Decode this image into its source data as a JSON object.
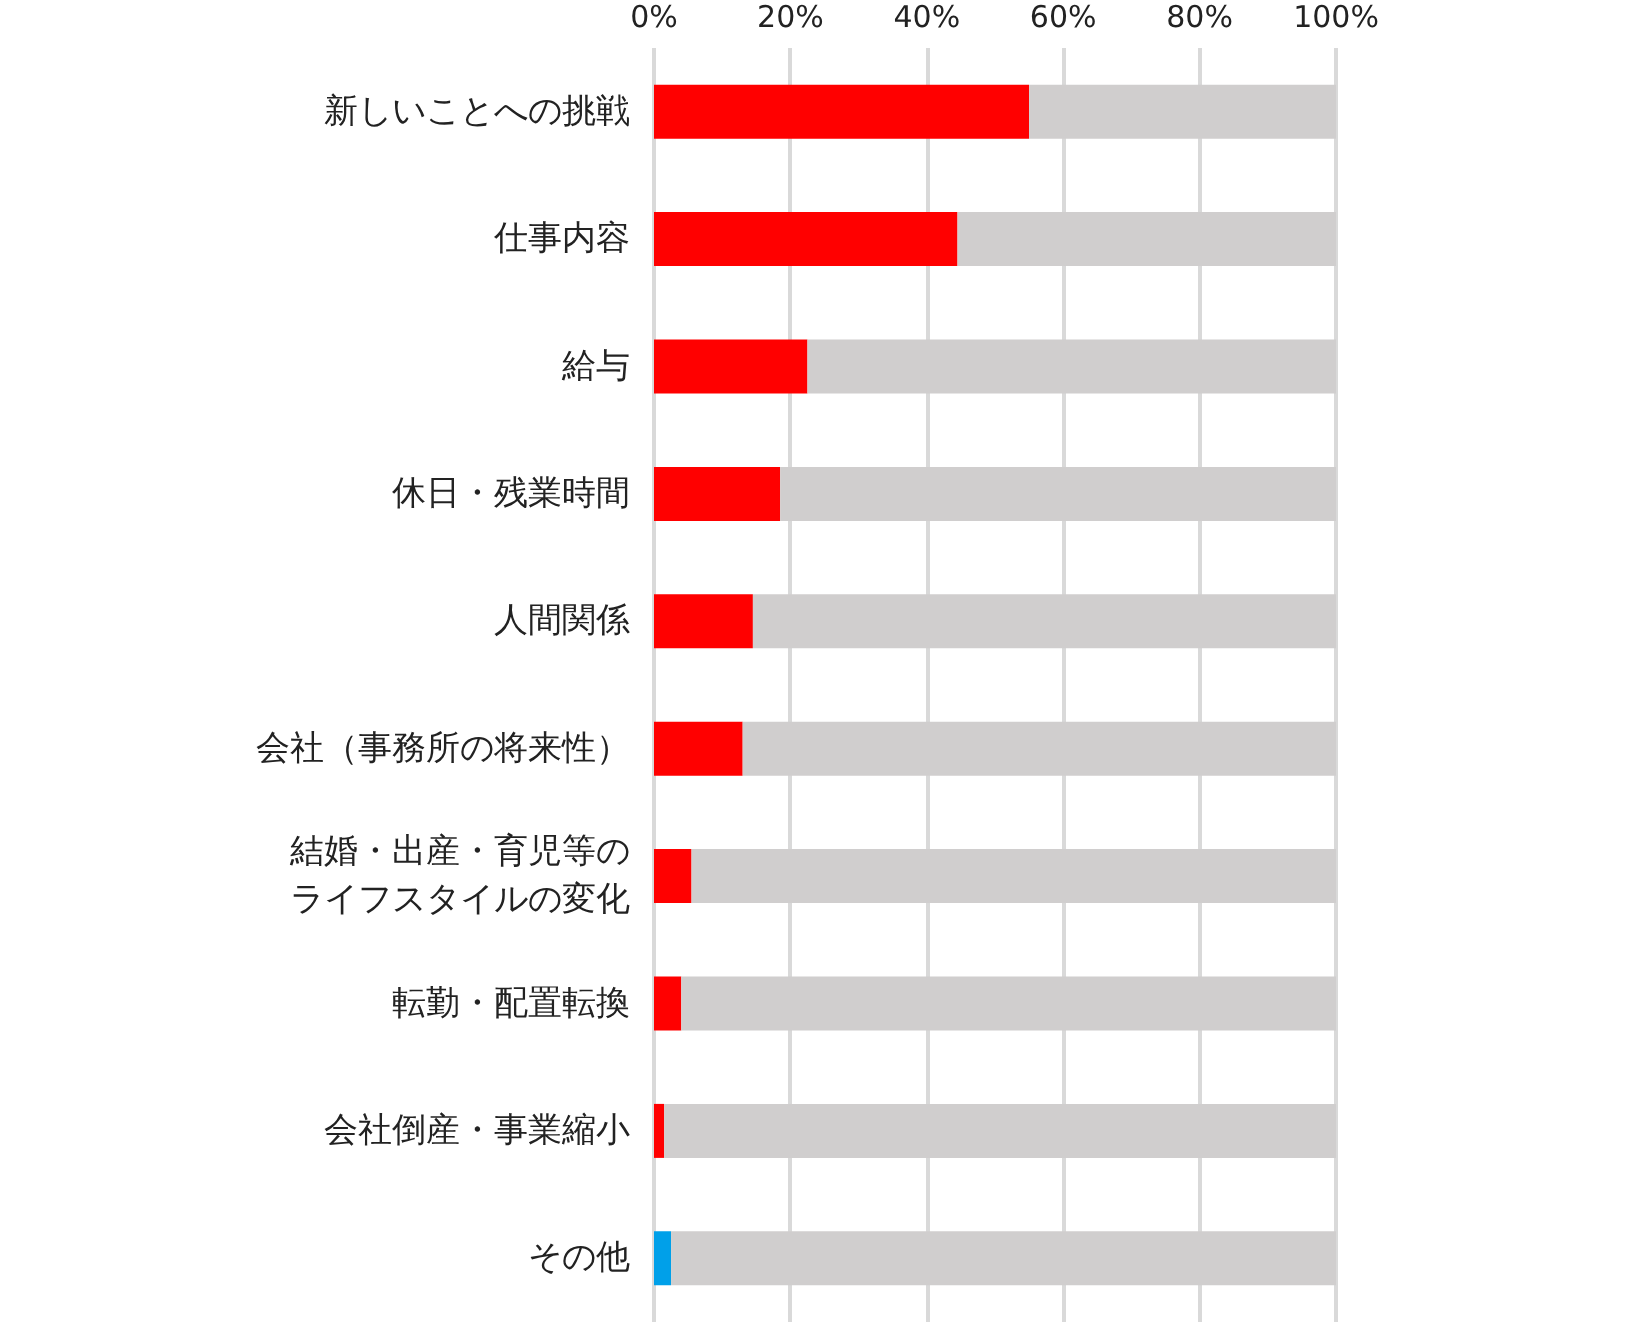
{
  "chart_data": {
    "type": "bar",
    "orientation": "horizontal",
    "stacked": true,
    "categories": [
      "新しいことへの挑戦",
      "仕事内容",
      "給与",
      "休日・残業時間",
      "人間関係",
      "会社（事務所の将来性）",
      "結婚・出産・育児等のライフスタイルの変化",
      "転勤・配置転換",
      "会社倒産・事業縮小",
      "その他"
    ],
    "series": [
      {
        "color": "#ff0000",
        "colors": [
          "#ff0000",
          "#ff0000",
          "#ff0000",
          "#ff0000",
          "#ff0000",
          "#ff0000",
          "#ff0000",
          "#ff0000",
          "#ff0000",
          "#00a0e9"
        ],
        "values": [
          55,
          44.5,
          22.5,
          18.5,
          14.5,
          13,
          5.5,
          4,
          1.5,
          2.5
        ]
      },
      {
        "color": "#d0cece",
        "values": [
          45,
          55.5,
          77.5,
          81.5,
          85.5,
          87,
          94.5,
          96,
          98.5,
          97.5
        ]
      }
    ],
    "xlim": [
      0,
      100
    ],
    "xticks": [
      {
        "value": 0,
        "label": "0%"
      },
      {
        "value": 20,
        "label": "20%"
      },
      {
        "value": 40,
        "label": "40%"
      },
      {
        "value": 60,
        "label": "60%"
      },
      {
        "value": 80,
        "label": "80%"
      },
      {
        "value": 100,
        "label": "100%"
      }
    ],
    "grid": "x"
  }
}
